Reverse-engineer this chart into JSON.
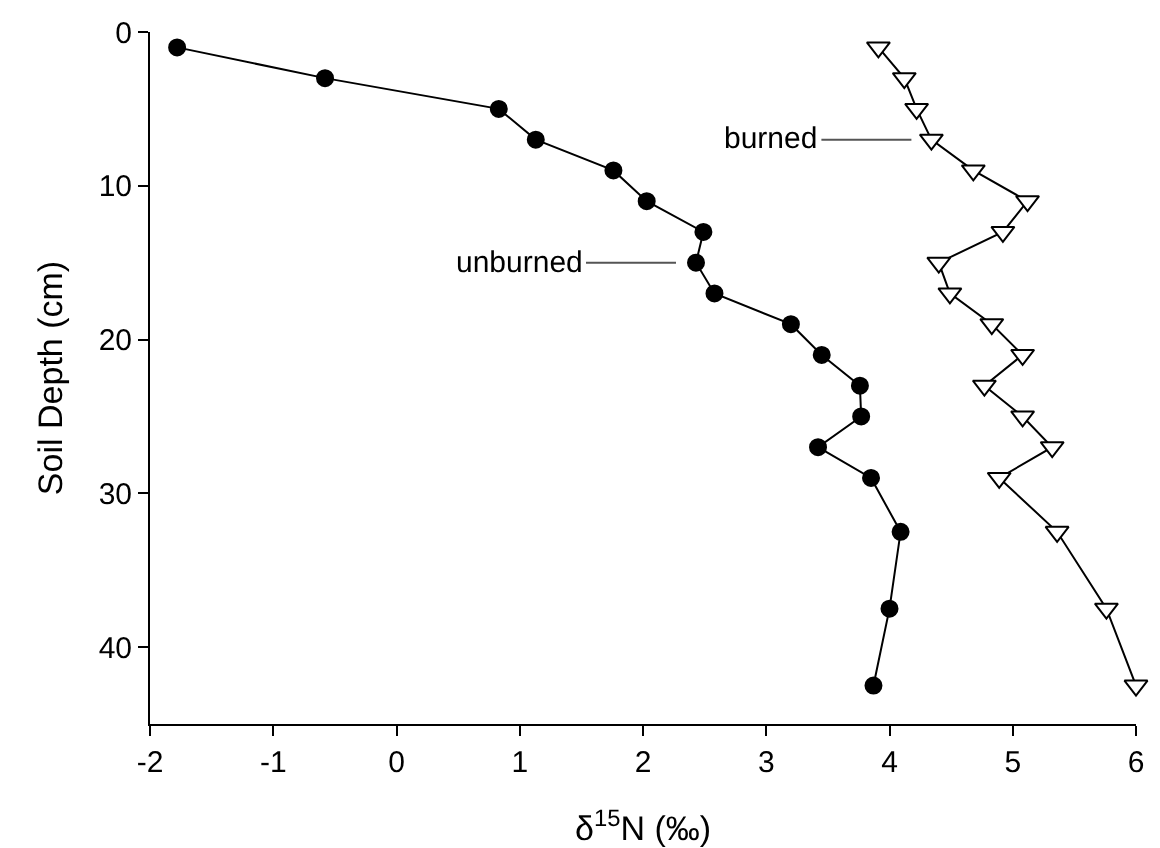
{
  "chart_data": {
    "type": "line",
    "xlabel": "δ$^{15}$N (‰)",
    "ylabel": "Soil Depth (cm)",
    "xlim": [
      -2,
      6
    ],
    "xticks": [
      -2,
      -1,
      0,
      1,
      2,
      3,
      4,
      5,
      6
    ],
    "ylim": [
      45,
      0
    ],
    "yticks": [
      0,
      10,
      20,
      30,
      40
    ],
    "grid": false,
    "legend": false,
    "line_style": "solid",
    "series": [
      {
        "name": "unburned",
        "color": "#000000",
        "marker": "circle",
        "x": [
          -1.78,
          -0.58,
          0.83,
          1.13,
          1.76,
          2.03,
          2.49,
          2.43,
          2.58,
          3.2,
          3.45,
          3.76,
          3.77,
          3.42,
          3.85,
          4.09,
          4.0,
          3.87
        ],
        "values": [
          1,
          3,
          5,
          7,
          9,
          11,
          13,
          15,
          17,
          19,
          21,
          23,
          25,
          27,
          29,
          32.5,
          37.5,
          42.5
        ]
      },
      {
        "name": "burned",
        "color": "#000000",
        "marker": "triangle",
        "x": [
          3.91,
          4.12,
          4.22,
          4.34,
          4.68,
          5.12,
          4.92,
          4.4,
          4.49,
          4.83,
          5.08,
          4.77,
          5.08,
          5.32,
          4.89,
          5.36,
          5.76,
          6.0
        ],
        "values": [
          1,
          3,
          5,
          7,
          9,
          11,
          13,
          15,
          17,
          19,
          21,
          23,
          25,
          27,
          29,
          32.5,
          37.5,
          42.5
        ]
      }
    ]
  }
}
